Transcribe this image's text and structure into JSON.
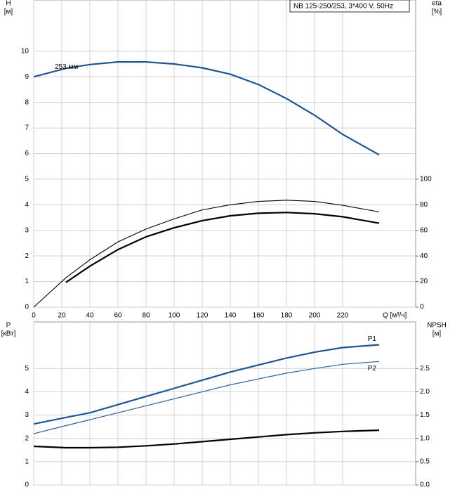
{
  "chart_data": [
    {
      "type": "line",
      "title": "NB 125-250/253, 3*400 V, 50Hz",
      "ylabel": [
        "H",
        "[м]"
      ],
      "y2label": [
        "eta",
        "[%]"
      ],
      "xlabel": "Q [м³/ч]",
      "x": [
        0,
        23,
        40,
        60,
        80,
        100,
        120,
        140,
        160,
        180,
        200,
        220,
        246
      ],
      "xlim": [
        0,
        272
      ],
      "xticks": [
        0,
        20,
        40,
        60,
        80,
        100,
        120,
        140,
        160,
        180,
        200,
        220
      ],
      "ylim": [
        0,
        12
      ],
      "yticks": [
        0,
        1,
        2,
        3,
        4,
        5,
        6,
        7,
        8,
        9,
        10
      ],
      "y2lim": [
        0,
        240
      ],
      "y2ticks": [
        0,
        20,
        40,
        60,
        80,
        100
      ],
      "grid": true,
      "series": [
        {
          "name": "253 мм",
          "color": "#1f5591",
          "width": 2.2,
          "values": [
            9.0,
            9.33,
            9.48,
            9.58,
            9.58,
            9.5,
            9.35,
            9.1,
            8.7,
            8.15,
            7.5,
            6.75,
            5.95
          ]
        },
        {
          "color": "#000000",
          "width": 1.1,
          "axis": "y2",
          "values": [
            0,
            23,
            37,
            51,
            61,
            69,
            76,
            80,
            82.6,
            83.6,
            82.6,
            79.6,
            74.4
          ]
        },
        {
          "color": "#000000",
          "width": 2.2,
          "axis": "y2",
          "values": [
            null,
            19.4,
            32,
            45,
            55,
            62,
            67.6,
            71.4,
            73.4,
            74,
            73,
            70.6,
            65.6
          ]
        }
      ]
    },
    {
      "type": "line",
      "ylabel": [
        "P",
        "[кВт]"
      ],
      "y2label": [
        "NPSH",
        "[м]"
      ],
      "x": [
        0,
        23,
        40,
        60,
        80,
        100,
        120,
        140,
        160,
        180,
        200,
        220,
        246
      ],
      "xlim": [
        0,
        272
      ],
      "ylim": [
        0,
        7
      ],
      "yticks": [
        0,
        1,
        2,
        3,
        4,
        5
      ],
      "y2lim": [
        0,
        3.5
      ],
      "y2ticks": [
        {
          "value": 0,
          "label": "0.0"
        },
        0.5,
        {
          "value": 1,
          "label": "1.0"
        },
        1.5,
        {
          "value": 2,
          "label": "2.0"
        },
        2.5
      ],
      "grid": true,
      "series": [
        {
          "name": "P1",
          "color": "#1f5591",
          "width": 2.2,
          "values": [
            2.62,
            2.9,
            3.1,
            3.45,
            3.8,
            4.15,
            4.5,
            4.85,
            5.15,
            5.45,
            5.7,
            5.9,
            6.02
          ]
        },
        {
          "name": "P2",
          "color": "#2e5f9e",
          "width": 1.2,
          "values": [
            2.2,
            2.55,
            2.8,
            3.1,
            3.4,
            3.7,
            4.0,
            4.3,
            4.55,
            4.8,
            5.0,
            5.18,
            5.3
          ]
        },
        {
          "color": "#000000",
          "width": 2.2,
          "axis": "y2",
          "values": [
            0.83,
            0.8,
            0.8,
            0.81,
            0.84,
            0.88,
            0.93,
            0.98,
            1.03,
            1.08,
            1.12,
            1.15,
            1.175
          ]
        }
      ]
    }
  ]
}
